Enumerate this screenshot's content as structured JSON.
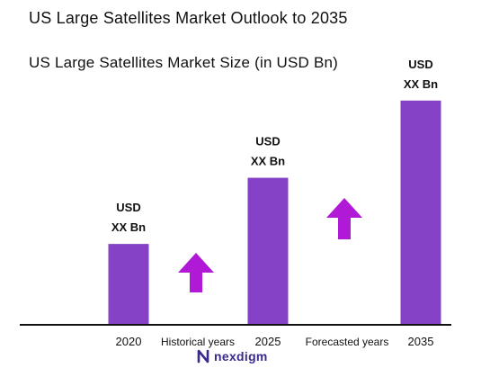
{
  "title": "US Large Satellites Market Outlook to 2035",
  "subtitle": "US Large Satellites Market Size (in USD Bn)",
  "brand": {
    "name": "nexdigm"
  },
  "colors": {
    "bar": "#8542c6",
    "arrow": "#b01ad6",
    "axis": "#111111",
    "brand": "#3b2a8c"
  },
  "chart_data": {
    "type": "bar",
    "categories": [
      "2020",
      "2025",
      "2035"
    ],
    "values": [
      22,
      40,
      61
    ],
    "ylim": [
      0,
      70
    ],
    "grid": false,
    "data_labels": [
      [
        "USD",
        "XX Bn"
      ],
      [
        "USD",
        "XX Bn"
      ],
      [
        "USD",
        "XX Bn"
      ]
    ],
    "period_labels": [
      "Historical years",
      "Forecasted years"
    ],
    "trend_arrows": [
      {
        "after_category": "2020",
        "direction": "up"
      },
      {
        "after_category": "2025",
        "direction": "up"
      }
    ]
  }
}
